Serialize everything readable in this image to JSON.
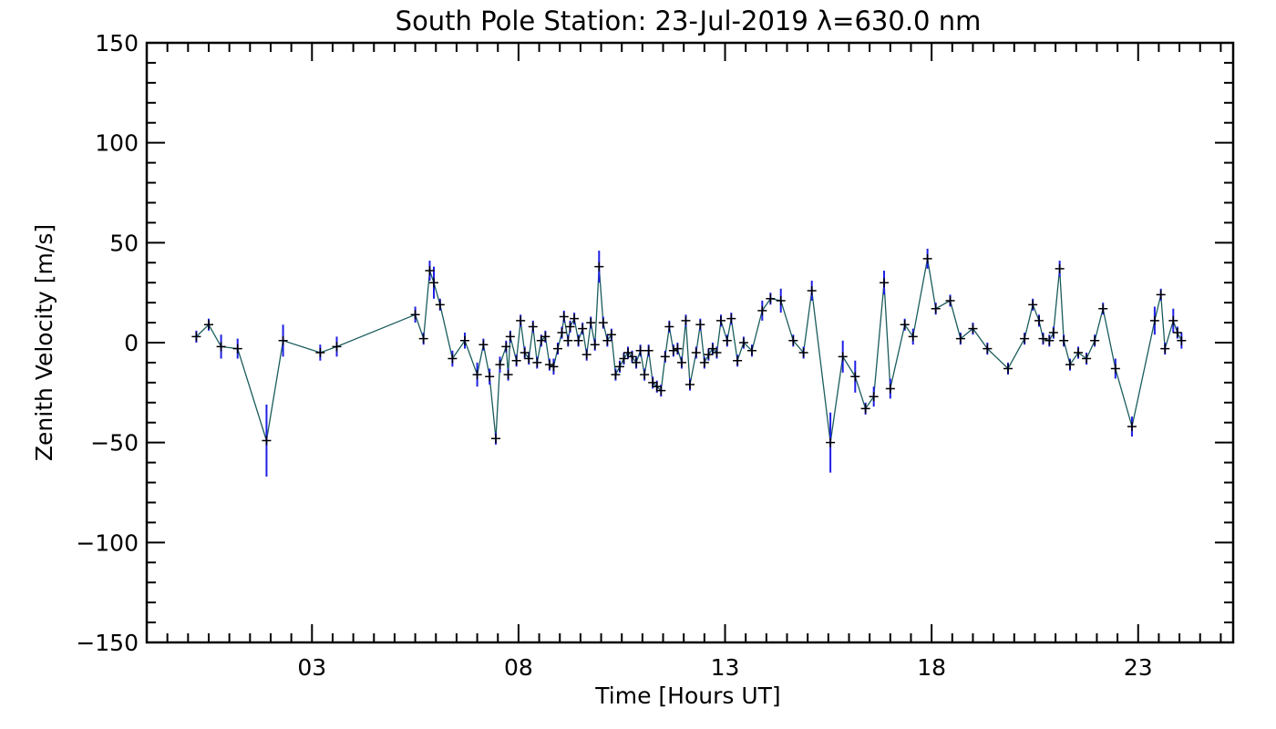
{
  "chart_data": {
    "type": "scatter",
    "title": "South Pole Station: 23-Jul-2019 λ=630.0 nm",
    "xlabel": "Time [Hours UT]",
    "ylabel": "Zenith Velocity [m/s]",
    "xlim": [
      -1.0,
      25.3
    ],
    "ylim": [
      -150,
      150
    ],
    "x_ticks": [
      {
        "value": 3,
        "label": "03"
      },
      {
        "value": 8,
        "label": "08"
      },
      {
        "value": 13,
        "label": "13"
      },
      {
        "value": 18,
        "label": "18"
      },
      {
        "value": 23,
        "label": "23"
      }
    ],
    "y_ticks": [
      {
        "value": 150,
        "label": "150"
      },
      {
        "value": 100,
        "label": "100"
      },
      {
        "value": 50,
        "label": "50"
      },
      {
        "value": 0,
        "label": "0"
      },
      {
        "value": -50,
        "label": "−50"
      },
      {
        "value": -100,
        "label": "−100"
      },
      {
        "value": -150,
        "label": "−150"
      }
    ],
    "colors": {
      "line": "#1a5c5c",
      "errorbar": "#1f1fe6",
      "marker": "#000000",
      "axis": "#000000"
    },
    "series": [
      {
        "name": "Zenith Velocity",
        "points": [
          [
            0.2,
            3,
            3
          ],
          [
            0.5,
            9,
            3
          ],
          [
            0.8,
            -2,
            6
          ],
          [
            1.2,
            -3,
            5
          ],
          [
            1.9,
            -49,
            18
          ],
          [
            2.3,
            1,
            8
          ],
          [
            3.2,
            -5,
            4
          ],
          [
            3.6,
            -2,
            5
          ],
          [
            5.5,
            14,
            4
          ],
          [
            5.7,
            2,
            3
          ],
          [
            5.85,
            36,
            5
          ],
          [
            5.95,
            30,
            8
          ],
          [
            6.1,
            19,
            3
          ],
          [
            6.4,
            -8,
            4
          ],
          [
            6.7,
            1,
            4
          ],
          [
            7.0,
            -16,
            6
          ],
          [
            7.15,
            -1,
            3
          ],
          [
            7.3,
            -17,
            4
          ],
          [
            7.45,
            -48,
            3
          ],
          [
            7.55,
            -11,
            4
          ],
          [
            7.7,
            -2,
            3
          ],
          [
            7.75,
            -16,
            3
          ],
          [
            7.8,
            3,
            3
          ],
          [
            7.95,
            -9,
            3
          ],
          [
            8.05,
            11,
            3
          ],
          [
            8.15,
            -5,
            3
          ],
          [
            8.25,
            -8,
            3
          ],
          [
            8.35,
            8,
            3
          ],
          [
            8.45,
            -10,
            3
          ],
          [
            8.55,
            1,
            3
          ],
          [
            8.65,
            3,
            3
          ],
          [
            8.75,
            -11,
            3
          ],
          [
            8.85,
            -12,
            4
          ],
          [
            8.95,
            -3,
            3
          ],
          [
            9.05,
            5,
            3
          ],
          [
            9.1,
            13,
            3
          ],
          [
            9.2,
            1,
            3
          ],
          [
            9.25,
            8,
            3
          ],
          [
            9.35,
            12,
            3
          ],
          [
            9.45,
            1,
            3
          ],
          [
            9.55,
            7,
            3
          ],
          [
            9.65,
            -6,
            3
          ],
          [
            9.75,
            10,
            3
          ],
          [
            9.85,
            -1,
            3
          ],
          [
            9.95,
            38,
            8
          ],
          [
            10.05,
            10,
            3
          ],
          [
            10.15,
            1,
            3
          ],
          [
            10.25,
            4,
            3
          ],
          [
            10.35,
            -16,
            3
          ],
          [
            10.45,
            -12,
            3
          ],
          [
            10.55,
            -8,
            3
          ],
          [
            10.65,
            -5,
            3
          ],
          [
            10.75,
            -7,
            3
          ],
          [
            10.85,
            -10,
            3
          ],
          [
            10.95,
            -4,
            3
          ],
          [
            11.05,
            -16,
            3
          ],
          [
            11.15,
            -4,
            3
          ],
          [
            11.25,
            -20,
            3
          ],
          [
            11.35,
            -22,
            3
          ],
          [
            11.45,
            -24,
            3
          ],
          [
            11.55,
            -7,
            3
          ],
          [
            11.65,
            8,
            3
          ],
          [
            11.75,
            -4,
            3
          ],
          [
            11.85,
            -3,
            3
          ],
          [
            11.95,
            -10,
            3
          ],
          [
            12.05,
            11,
            3
          ],
          [
            12.15,
            -21,
            3
          ],
          [
            12.3,
            -5,
            3
          ],
          [
            12.4,
            9,
            3
          ],
          [
            12.5,
            -10,
            3
          ],
          [
            12.6,
            -6,
            3
          ],
          [
            12.7,
            -3,
            3
          ],
          [
            12.8,
            -5,
            3
          ],
          [
            12.9,
            11,
            3
          ],
          [
            13.05,
            1,
            3
          ],
          [
            13.15,
            12,
            3
          ],
          [
            13.3,
            -9,
            3
          ],
          [
            13.45,
            0,
            3
          ],
          [
            13.65,
            -4,
            3
          ],
          [
            13.9,
            16,
            5
          ],
          [
            14.1,
            22,
            3
          ],
          [
            14.35,
            21,
            6
          ],
          [
            14.65,
            1,
            3
          ],
          [
            14.9,
            -5,
            3
          ],
          [
            15.1,
            26,
            5
          ],
          [
            15.55,
            -50,
            15
          ],
          [
            15.85,
            -7,
            8
          ],
          [
            16.15,
            -17,
            8
          ],
          [
            16.4,
            -33,
            3
          ],
          [
            16.6,
            -27,
            5
          ],
          [
            16.85,
            30,
            6
          ],
          [
            17.0,
            -23,
            5
          ],
          [
            17.35,
            9,
            3
          ],
          [
            17.55,
            3,
            4
          ],
          [
            17.9,
            42,
            5
          ],
          [
            18.1,
            17,
            3
          ],
          [
            18.45,
            21,
            3
          ],
          [
            18.7,
            2,
            3
          ],
          [
            19.0,
            7,
            3
          ],
          [
            19.35,
            -3,
            3
          ],
          [
            19.85,
            -13,
            3
          ],
          [
            20.25,
            2,
            3
          ],
          [
            20.45,
            19,
            3
          ],
          [
            20.6,
            11,
            3
          ],
          [
            20.7,
            2,
            3
          ],
          [
            20.85,
            1,
            3
          ],
          [
            20.95,
            5,
            3
          ],
          [
            21.1,
            37,
            4
          ],
          [
            21.2,
            1,
            3
          ],
          [
            21.35,
            -11,
            3
          ],
          [
            21.55,
            -5,
            3
          ],
          [
            21.75,
            -8,
            3
          ],
          [
            21.95,
            1,
            3
          ],
          [
            22.15,
            17,
            3
          ],
          [
            22.45,
            -13,
            5
          ],
          [
            22.85,
            -42,
            5
          ],
          [
            23.4,
            11,
            7
          ],
          [
            23.55,
            24,
            3
          ],
          [
            23.65,
            -3,
            3
          ],
          [
            23.85,
            11,
            6
          ],
          [
            23.95,
            5,
            3
          ],
          [
            24.05,
            1,
            4
          ]
        ]
      }
    ]
  }
}
